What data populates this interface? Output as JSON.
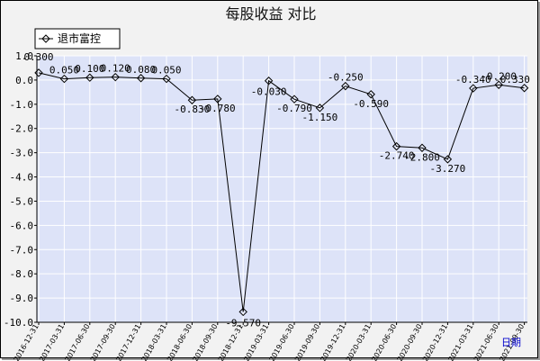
{
  "chart_data": {
    "type": "line",
    "title": "每股收益  对比",
    "xlabel": "日期",
    "ylabel": "",
    "ylim": [
      -10.0,
      1.0
    ],
    "yticks": [
      1.0,
      0.0,
      -1.0,
      -2.0,
      -3.0,
      -4.0,
      -5.0,
      -6.0,
      -7.0,
      -8.0,
      -9.0,
      -10.0
    ],
    "ytick_labels": [
      "1.0",
      "0.0",
      "-1.0",
      "-2.0",
      "-3.0",
      "-4.0",
      "-5.0",
      "-6.0",
      "-7.0",
      "-8.0",
      "-9.0",
      "-10.0"
    ],
    "x": [
      "2016-12-31",
      "2017-03-31",
      "2017-06-30",
      "2017-09-30",
      "2017-12-31",
      "2018-03-31",
      "2018-06-30",
      "2018-09-30",
      "2018-12-31",
      "2019-03-31",
      "2019-06-30",
      "2019-09-30",
      "2019-12-31",
      "2020-03-31",
      "2020-06-30",
      "2020-09-30",
      "2020-12-31",
      "2021-03-31",
      "2021-06-30",
      "2021-09-30"
    ],
    "x_tick_labels": [
      "2016-12-31",
      "2017-03-31",
      "2017-06-30",
      "2017-09-30",
      "2017-12-31",
      "2018-03-31",
      "2018-06-30",
      "2018-09-30",
      "2018-12-31",
      "2019-03-31",
      "2019-06-30",
      "2019-09-30",
      "2019-12-31",
      "2020-03-31",
      "2020-06-30",
      "2020-09-30",
      "2020-12-31",
      "2021-03-31",
      "2021-06-30",
      "2021-09-30"
    ],
    "grid": true,
    "legend_position": "top-left",
    "series": [
      {
        "name": "退市富控",
        "color": "#000000",
        "marker": "diamond",
        "values": [
          0.3,
          0.05,
          0.1,
          0.12,
          0.08,
          0.05,
          -0.83,
          -0.78,
          -9.57,
          -0.03,
          -0.79,
          -1.15,
          -0.25,
          -0.59,
          -2.74,
          -2.8,
          -3.27,
          -0.34,
          -0.2,
          -0.33
        ],
        "labels": [
          "0.300",
          "0.050",
          "0.100",
          "0.120",
          "0.080",
          "0.050",
          "-0.830",
          "-0.780",
          "-9.570",
          "-0.030",
          "-0.790",
          "-1.150",
          "-0.250",
          "-0.590",
          "-2.740",
          "-2.800",
          "-3.270",
          "-0.340",
          "-0.200",
          "-0.330"
        ]
      }
    ]
  },
  "colors": {
    "frame": "#f2f2f2",
    "plot_bg": "#dde3f8",
    "grid": "#ffffff",
    "axis": "#000000",
    "unit_label": "#0000cc"
  }
}
